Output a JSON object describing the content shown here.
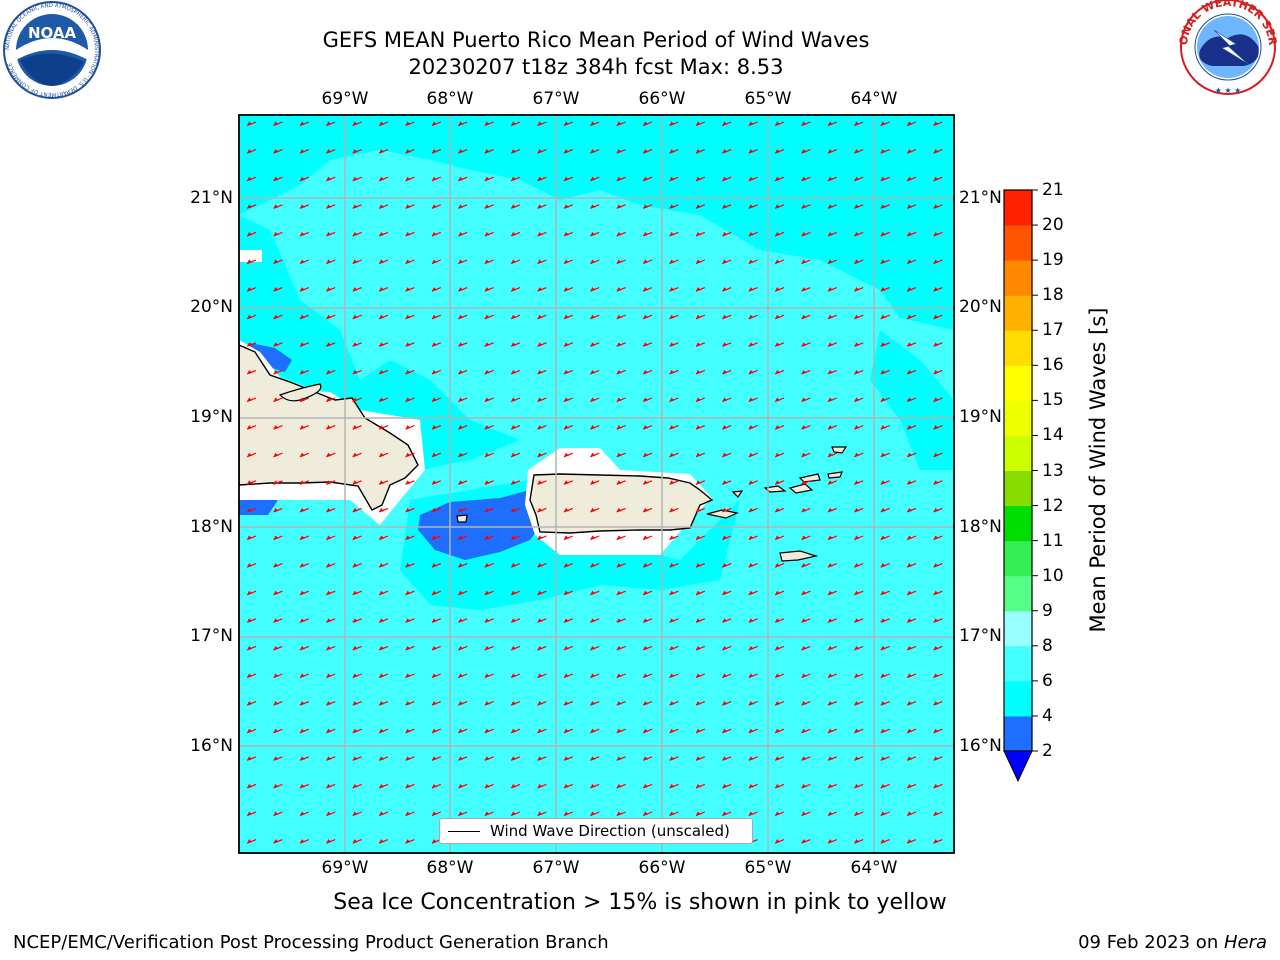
{
  "title": {
    "line1": "GEFS MEAN Puerto Rico Mean Period of Wind Waves",
    "line2": "20230207 t18z 384h fcst   Max: 8.53"
  },
  "logos": {
    "left": "noaa-logo",
    "left_text": "NOAA",
    "left_ring_text": "NATIONAL OCEANIC AND ATMOSPHERIC ADMINISTRATION · U.S. DEPARTMENT OF COMMERCE",
    "right": "nws-logo",
    "right_ring_text": "NATIONAL WEATHER SERVICE"
  },
  "map": {
    "lon_labels": [
      "69°W",
      "68°W",
      "67°W",
      "66°W",
      "65°W",
      "64°W"
    ],
    "lat_labels": [
      "21°N",
      "20°N",
      "19°N",
      "18°N",
      "17°N",
      "16°N"
    ],
    "legend_label": "Wind Wave Direction (unscaled)",
    "colors": {
      "sea_main": "#00ffff",
      "sea_light": "#44ffff",
      "low_period": "#1e6fff",
      "land": "#efecdc",
      "arrow": "#ff0000",
      "grid": "#b4b4b4"
    }
  },
  "colorbar": {
    "label": "Mean Period of Wind Waves [s]",
    "ticks": [
      "2",
      "4",
      "6",
      "8",
      "9",
      "10",
      "11",
      "12",
      "13",
      "14",
      "15",
      "16",
      "17",
      "18",
      "19",
      "20",
      "21"
    ],
    "colors": [
      "#1e6fff",
      "#00ffff",
      "#44ffff",
      "#99ffff",
      "#55ff88",
      "#33ee55",
      "#00dd00",
      "#88dd00",
      "#ccff00",
      "#eeff00",
      "#ffff00",
      "#ffdd00",
      "#ffb000",
      "#ff8800",
      "#ff5500",
      "#ff2200"
    ],
    "under_color": "#0000ff",
    "extend": "min"
  },
  "note": "Sea Ice Concentration > 15% is shown in pink to yellow",
  "footer": {
    "left": "NCEP/EMC/Verification Post Processing Product Generation Branch",
    "right_date": "09 Feb 2023 on ",
    "right_host": "Hera"
  }
}
